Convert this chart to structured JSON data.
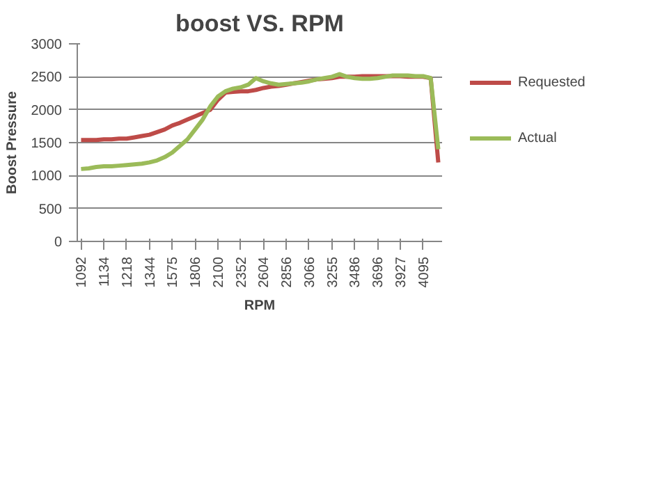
{
  "chart_data": {
    "type": "line",
    "title": "boost VS. RPM",
    "xlabel": "RPM",
    "ylabel": "Boost Pressure",
    "categories": [
      "1092",
      null,
      null,
      "1134",
      null,
      null,
      "1218",
      null,
      null,
      "1344",
      null,
      null,
      "1575",
      null,
      null,
      "1806",
      null,
      null,
      "2100",
      null,
      null,
      "2352",
      null,
      null,
      "2604",
      null,
      null,
      "2856",
      null,
      null,
      "3066",
      null,
      null,
      "3255",
      null,
      null,
      "3486",
      null,
      null,
      "3696",
      null,
      null,
      "3927",
      null,
      null,
      "4095",
      null,
      null
    ],
    "ylim": [
      0,
      3000
    ],
    "yticks": [
      0,
      500,
      1000,
      1500,
      2000,
      2500,
      3000
    ],
    "grid": "y",
    "legend": "right",
    "marker": "none",
    "series": [
      {
        "name": "Requested",
        "color": "#be4b48",
        "values": [
          1540,
          1540,
          1540,
          1550,
          1550,
          1560,
          1560,
          1580,
          1600,
          1620,
          1660,
          1700,
          1760,
          1800,
          1850,
          1900,
          1950,
          2000,
          2150,
          2260,
          2270,
          2280,
          2280,
          2300,
          2330,
          2350,
          2360,
          2380,
          2400,
          2420,
          2440,
          2460,
          2470,
          2480,
          2500,
          2500,
          2500,
          2510,
          2510,
          2510,
          2510,
          2510,
          2510,
          2500,
          2500,
          2500,
          2480,
          1200
        ]
      },
      {
        "name": "Actual",
        "color": "#9bbb59",
        "values": [
          1100,
          1110,
          1130,
          1140,
          1140,
          1150,
          1160,
          1170,
          1180,
          1200,
          1230,
          1280,
          1350,
          1450,
          1550,
          1700,
          1850,
          2050,
          2200,
          2280,
          2320,
          2340,
          2380,
          2480,
          2430,
          2400,
          2380,
          2390,
          2400,
          2410,
          2430,
          2460,
          2480,
          2500,
          2540,
          2500,
          2480,
          2470,
          2470,
          2480,
          2500,
          2520,
          2520,
          2520,
          2510,
          2510,
          2480,
          1400
        ]
      }
    ]
  }
}
